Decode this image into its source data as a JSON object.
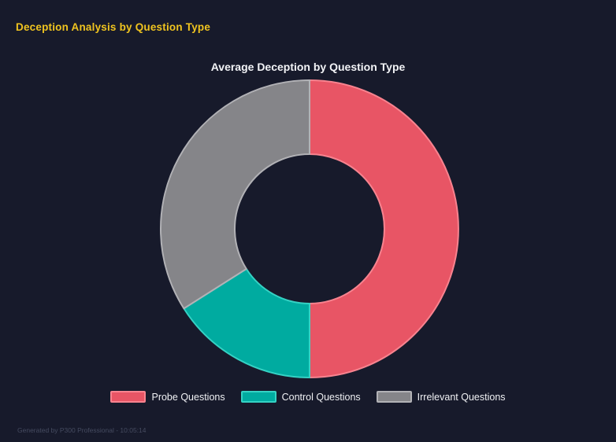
{
  "theme": {
    "background": "#171a2b",
    "header_color": "#f0c41f",
    "title_color": "#f2f3f6",
    "legend_text_color": "#f0f1f4",
    "footer_color": "#454b60"
  },
  "header": {
    "title": "Deception Analysis by Question Type"
  },
  "footer": {
    "text": "Generated by P300 Professional - 10:05:14"
  },
  "chart_data": {
    "type": "pie",
    "variant": "doughnut",
    "title": "Average Deception by Question Type",
    "categories": [
      "Probe Questions",
      "Control Questions",
      "Irrelevant Questions"
    ],
    "values": [
      50,
      16,
      34
    ],
    "unit": "percent",
    "colors": [
      "#e85565",
      "#00aba0",
      "#858589"
    ],
    "border_colors": [
      "#f8838f",
      "#35d2c4",
      "#b2b2b6"
    ],
    "legend_position": "bottom",
    "start_angle_deg": 0,
    "direction": "clockwise",
    "cutout_ratio": 0.5,
    "data_labels_shown": false
  }
}
